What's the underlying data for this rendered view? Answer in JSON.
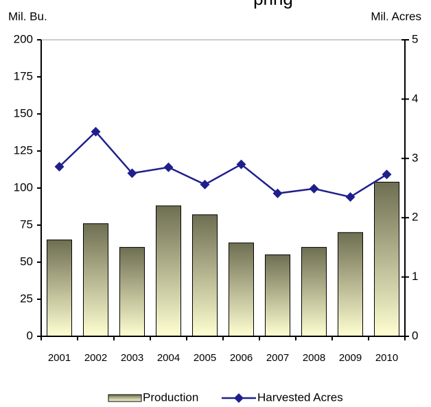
{
  "chart_data": {
    "type": "bar_line",
    "title": "pring",
    "y_label": "Mil. Bu.",
    "y2_label": "Mil. Acres",
    "categories": [
      "2001",
      "2002",
      "2003",
      "2004",
      "2005",
      "2006",
      "2007",
      "2008",
      "2009",
      "2010"
    ],
    "series": [
      {
        "name": "Production",
        "type": "bar",
        "color": "#6e6e52",
        "values": [
          65,
          76,
          60,
          88,
          82,
          63,
          55,
          60,
          70,
          104
        ]
      },
      {
        "name": "Harvested Acres",
        "type": "line",
        "axis": "y2",
        "color": "#1f1f8c",
        "values": [
          2.86,
          3.45,
          2.75,
          2.85,
          2.56,
          2.9,
          2.41,
          2.49,
          2.35,
          2.73
        ]
      }
    ],
    "ylim": [
      0,
      200
    ],
    "yticks": [
      0,
      25,
      50,
      75,
      100,
      125,
      150,
      175,
      200
    ],
    "y2lim": [
      0,
      5
    ],
    "y2ticks": [
      0,
      1,
      2,
      3,
      4,
      5
    ],
    "legend": "bottom"
  }
}
